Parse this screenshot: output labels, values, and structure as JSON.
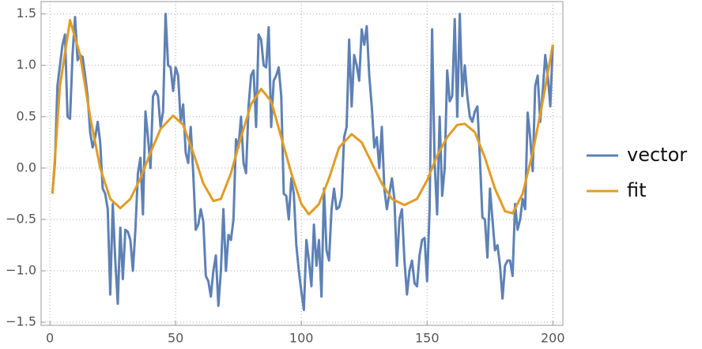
{
  "chart_data": {
    "type": "line",
    "series": [
      {
        "name": "vector",
        "color": "#5e81b5",
        "x": [
          1,
          2,
          3,
          4,
          5,
          6,
          7,
          8,
          9,
          10,
          11,
          12,
          13,
          14,
          15,
          16,
          17,
          18,
          19,
          20,
          21,
          22,
          23,
          24,
          25,
          26,
          27,
          28,
          29,
          30,
          31,
          32,
          33,
          34,
          35,
          36,
          37,
          38,
          39,
          40,
          41,
          42,
          43,
          44,
          45,
          46,
          47,
          48,
          49,
          50,
          51,
          52,
          53,
          54,
          55,
          56,
          57,
          58,
          59,
          60,
          61,
          62,
          63,
          64,
          65,
          66,
          67,
          68,
          69,
          70,
          71,
          72,
          73,
          74,
          75,
          76,
          77,
          78,
          79,
          80,
          81,
          82,
          83,
          84,
          85,
          86,
          87,
          88,
          89,
          90,
          91,
          92,
          93,
          94,
          95,
          96,
          97,
          98,
          99,
          100,
          101,
          102,
          103,
          104,
          105,
          106,
          107,
          108,
          109,
          110,
          111,
          112,
          113,
          114,
          115,
          116,
          117,
          118,
          119,
          120,
          121,
          122,
          123,
          124,
          125,
          126,
          127,
          128,
          129,
          130,
          131,
          132,
          133,
          134,
          135,
          136,
          137,
          138,
          139,
          140,
          141,
          142,
          143,
          144,
          145,
          146,
          147,
          148,
          149,
          150,
          151,
          152,
          153,
          154,
          155,
          156,
          157,
          158,
          159,
          160,
          161,
          162,
          163,
          164,
          165,
          166,
          167,
          168,
          169,
          170,
          171,
          172,
          173,
          174,
          175,
          176,
          177,
          178,
          179,
          180,
          181,
          182,
          183,
          184,
          185,
          186,
          187,
          188,
          189,
          190,
          191,
          192,
          193,
          194,
          195,
          196,
          197,
          198,
          199,
          200
        ],
        "values": [
          -0.25,
          0.05,
          0.8,
          1.0,
          1.2,
          1.3,
          0.5,
          0.48,
          1.1,
          1.47,
          1.05,
          1.1,
          1.08,
          0.9,
          0.7,
          0.35,
          0.2,
          0.3,
          0.45,
          0.25,
          -0.2,
          -0.25,
          -0.4,
          -1.23,
          -0.35,
          -0.9,
          -1.32,
          -0.58,
          -1.08,
          -0.6,
          -0.62,
          -0.7,
          -1.0,
          -0.6,
          -0.05,
          0.1,
          -0.45,
          0.55,
          0.3,
          0.0,
          0.7,
          0.75,
          0.7,
          0.4,
          0.55,
          1.5,
          1.0,
          0.98,
          0.75,
          0.98,
          0.9,
          0.45,
          0.62,
          0.15,
          0.05,
          0.4,
          -0.05,
          -0.6,
          -0.55,
          -0.4,
          -0.52,
          -1.05,
          -1.1,
          -1.25,
          -1.0,
          -0.85,
          -1.34,
          -1.0,
          -0.4,
          -1.0,
          -0.65,
          -0.7,
          -0.5,
          0.28,
          0.2,
          0.5,
          0.05,
          -0.05,
          0.6,
          0.9,
          0.95,
          0.4,
          1.3,
          1.25,
          1.0,
          0.98,
          1.37,
          0.4,
          0.85,
          0.9,
          0.98,
          0.7,
          -0.25,
          -0.27,
          -0.5,
          -0.1,
          -0.25,
          -0.75,
          -1.0,
          -1.2,
          -1.38,
          -0.7,
          -0.9,
          -1.15,
          -0.55,
          -0.95,
          -0.7,
          -1.25,
          -0.2,
          -0.8,
          -0.9,
          -0.4,
          -0.2,
          -0.4,
          -0.38,
          -0.28,
          0.3,
          0.4,
          1.25,
          0.6,
          1.1,
          1.0,
          0.85,
          1.35,
          1.2,
          1.38,
          0.9,
          0.6,
          0.2,
          0.3,
          0.0,
          0.4,
          -0.2,
          -0.4,
          -0.25,
          -0.1,
          -0.3,
          -0.95,
          -0.5,
          -0.4,
          -0.9,
          -1.23,
          -1.0,
          -0.9,
          -1.12,
          -1.15,
          -0.85,
          -0.7,
          -0.68,
          -1.1,
          -0.4,
          1.35,
          0.05,
          -0.45,
          0.5,
          -0.27,
          0.0,
          0.95,
          0.65,
          0.7,
          1.45,
          0.5,
          1.5,
          0.7,
          1.0,
          0.7,
          0.5,
          0.45,
          0.55,
          0.6,
          0.1,
          -0.48,
          -0.5,
          -0.87,
          -0.2,
          -0.5,
          -0.8,
          -0.75,
          -0.95,
          -1.27,
          -0.95,
          -0.9,
          -0.9,
          -1.05,
          -0.35,
          -0.6,
          -0.5,
          -0.3,
          -0.4,
          0.54,
          0.3,
          -0.03,
          0.8,
          0.9,
          0.45,
          0.75,
          1.1,
          0.9,
          0.6,
          1.2
        ]
      },
      {
        "name": "fit",
        "color": "#e19c24",
        "x": [
          1,
          4,
          8,
          12,
          16,
          20,
          24,
          28,
          32,
          36,
          40,
          44,
          49,
          53,
          57,
          61,
          65,
          68,
          72,
          76,
          80,
          84,
          88,
          92,
          96,
          100,
          103,
          107,
          111,
          115,
          120,
          124,
          128,
          132,
          136,
          141,
          146,
          150,
          154,
          158,
          162,
          165,
          169,
          173,
          177,
          181,
          184,
          188,
          192,
          196,
          200
        ],
        "values": [
          -0.25,
          0.8,
          1.44,
          1.1,
          0.5,
          0.0,
          -0.3,
          -0.39,
          -0.3,
          -0.1,
          0.15,
          0.38,
          0.51,
          0.42,
          0.15,
          -0.15,
          -0.32,
          -0.3,
          -0.05,
          0.3,
          0.62,
          0.77,
          0.65,
          0.3,
          -0.05,
          -0.35,
          -0.45,
          -0.35,
          -0.1,
          0.2,
          0.33,
          0.25,
          0.05,
          -0.15,
          -0.3,
          -0.36,
          -0.3,
          -0.12,
          0.12,
          0.3,
          0.42,
          0.43,
          0.35,
          0.1,
          -0.2,
          -0.42,
          -0.44,
          -0.25,
          0.15,
          0.65,
          1.2
        ]
      }
    ],
    "xlim": [
      -3.5,
      204
    ],
    "ylim": [
      -1.53,
      1.62
    ],
    "xticks": [
      0,
      50,
      100,
      150,
      200
    ],
    "yticks": [
      {
        "value": -1.5,
        "label": "−1.5"
      },
      {
        "value": -1,
        "label": "−1.0"
      },
      {
        "value": -0.5,
        "label": "−0.5"
      },
      {
        "value": 0,
        "label": "0.0"
      },
      0.5,
      {
        "value": 1,
        "label": "1.0"
      },
      1.5
    ],
    "grid": true,
    "legend": "right"
  }
}
